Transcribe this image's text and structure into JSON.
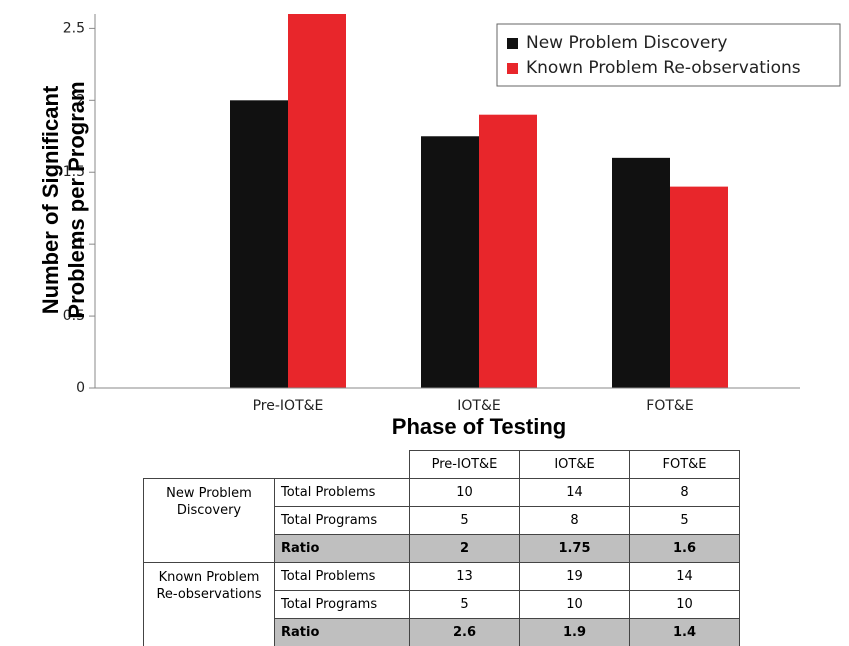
{
  "chart_data": {
    "type": "bar",
    "y_label": "Number of Significant Problems per Program",
    "x_label": "Phase of Testing",
    "categories": [
      "Pre-IOT&E",
      "IOT&E",
      "FOT&E"
    ],
    "series": [
      {
        "name": "New Problem Discovery",
        "color": "#111111",
        "values": [
          2,
          1.75,
          1.6
        ]
      },
      {
        "name": "Known Problem Re-observations",
        "color": "#e8262b",
        "values": [
          2.6,
          1.9,
          1.4
        ]
      }
    ],
    "ylim": [
      0,
      2.6
    ],
    "yticks": [
      0,
      0.5,
      1,
      1.5,
      2,
      2.5
    ],
    "legend": "top-right"
  },
  "table": {
    "columns": [
      "Pre-IOT&E",
      "IOT&E",
      "FOT&E"
    ],
    "groups": [
      {
        "name": "New Problem Discovery",
        "rows": [
          {
            "label": "Total Problems",
            "values": [
              10,
              14,
              8
            ]
          },
          {
            "label": "Total Programs",
            "values": [
              5,
              8,
              5
            ]
          },
          {
            "label": "Ratio",
            "values": [
              2,
              1.75,
              1.6
            ]
          }
        ]
      },
      {
        "name": "Known Problem Re-observations",
        "rows": [
          {
            "label": "Total Problems",
            "values": [
              13,
              19,
              14
            ]
          },
          {
            "label": "Total Programs",
            "values": [
              5,
              10,
              10
            ]
          },
          {
            "label": "Ratio",
            "values": [
              2.6,
              1.9,
              1.4
            ]
          }
        ]
      }
    ]
  }
}
